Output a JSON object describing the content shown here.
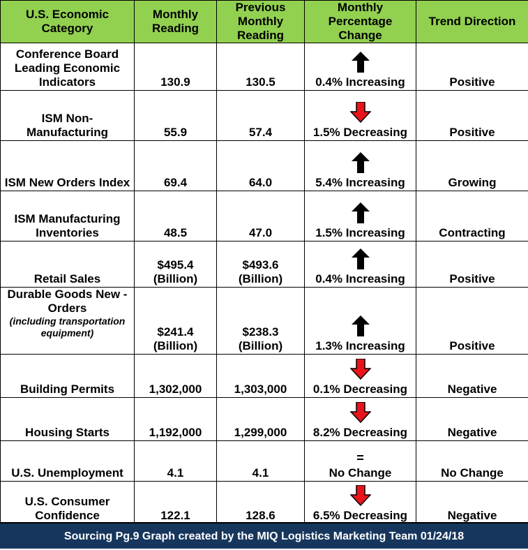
{
  "chart_data": {
    "type": "table",
    "columns": [
      "U.S. Economic Category",
      "Monthly Reading",
      "Previous Monthly Reading",
      "Monthly Percentage Change",
      "Trend Direction"
    ],
    "rows": [
      {
        "category": "Conference Board Leading Economic Indicators",
        "sub": "",
        "monthly": "130.9",
        "previous": "130.5",
        "change": "0.4% Increasing",
        "arrow": "up",
        "trend": "Positive"
      },
      {
        "category": "ISM Non-Manufacturing",
        "sub": "",
        "monthly": "55.9",
        "previous": "57.4",
        "change": "1.5% Decreasing",
        "arrow": "down",
        "trend": "Positive"
      },
      {
        "category": "ISM New Orders Index",
        "sub": "",
        "monthly": "69.4",
        "previous": "64.0",
        "change": "5.4% Increasing",
        "arrow": "up",
        "trend": "Growing"
      },
      {
        "category": "ISM Manufacturing Inventories",
        "sub": "",
        "monthly": "48.5",
        "previous": "47.0",
        "change": "1.5% Increasing",
        "arrow": "up",
        "trend": "Contracting"
      },
      {
        "category": "Retail Sales",
        "sub": "",
        "monthly": "$495.4 (Billion)",
        "previous": "$493.6 (Billion)",
        "change": "0.4% Increasing",
        "arrow": "up",
        "trend": "Positive"
      },
      {
        "category": "Durable Goods New -Orders",
        "sub": "(including transportation equipment)",
        "monthly": "$241.4 (Billion)",
        "previous": "$238.3 (Billion)",
        "change": "1.3% Increasing",
        "arrow": "up",
        "trend": "Positive"
      },
      {
        "category": "Building Permits",
        "sub": "",
        "monthly": "1,302,000",
        "previous": "1,303,000",
        "change": "0.1% Decreasing",
        "arrow": "down",
        "trend": "Negative"
      },
      {
        "category": "Housing Starts",
        "sub": "",
        "monthly": "1,192,000",
        "previous": "1,299,000",
        "change": "8.2% Decreasing",
        "arrow": "down",
        "trend": "Negative"
      },
      {
        "category": "U.S. Unemployment",
        "sub": "",
        "monthly": "4.1",
        "previous": "4.1",
        "change": "No Change",
        "arrow": "equal",
        "trend": "No Change"
      },
      {
        "category": "U.S. Consumer Confidence",
        "sub": "",
        "monthly": "122.1",
        "previous": "128.6",
        "change": "6.5% Decreasing",
        "arrow": "down",
        "trend": "Negative"
      }
    ],
    "footer": "Sourcing Pg.9 Graph created by the MIQ Logistics Marketing Team 01/24/18"
  },
  "colors": {
    "header_bg": "#92d050",
    "footer_bg": "#17365d",
    "down_arrow": "#e8141c",
    "up_arrow": "#000000"
  },
  "icons": {
    "up": "arrow-up-icon",
    "down": "arrow-down-icon",
    "equal": "equals-icon"
  },
  "equal_symbol": "="
}
